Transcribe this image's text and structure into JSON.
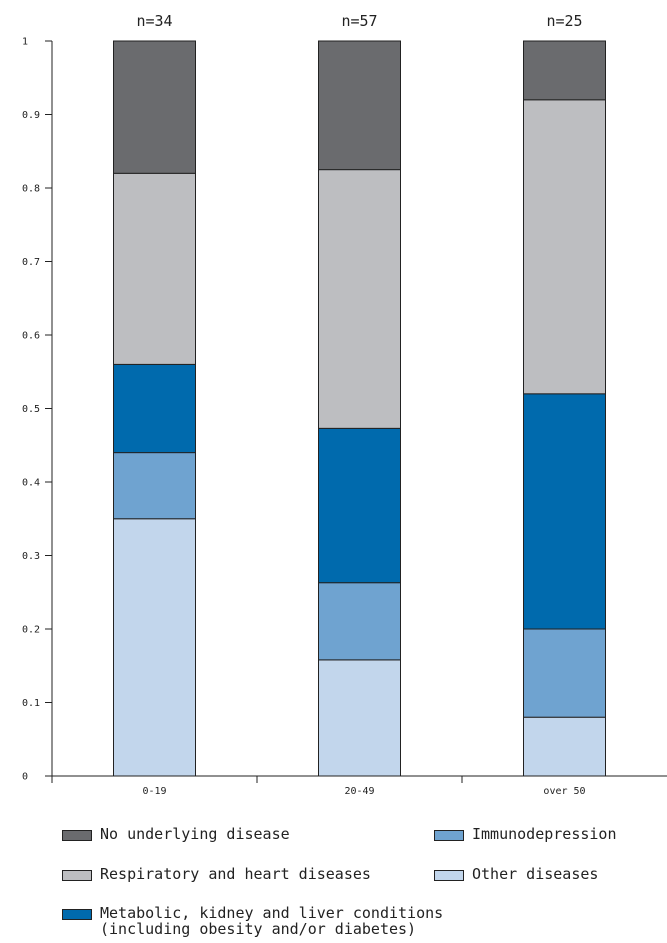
{
  "chart_data": {
    "type": "bar",
    "stacked": true,
    "categories": [
      "0-19",
      "20-49",
      "over 50"
    ],
    "top_labels": [
      "n=34",
      "n=57",
      "n=25"
    ],
    "ylim": [
      0,
      1
    ],
    "yticks": [
      "0",
      "0.1",
      "0.2",
      "0.3",
      "0.4",
      "0.5",
      "0.6",
      "0.7",
      "0.8",
      "0.9",
      "1"
    ],
    "series": [
      {
        "name": "Other diseases",
        "color": "#c2d6ec",
        "values": [
          0.35,
          0.158,
          0.08
        ]
      },
      {
        "name": "Immunodepression",
        "color": "#6fa3d0",
        "values": [
          0.09,
          0.105,
          0.12
        ]
      },
      {
        "name": "Metabolic, kidney and liver conditions\n(including obesity and/or diabetes)",
        "color": "#006aad",
        "values": [
          0.12,
          0.21,
          0.32
        ]
      },
      {
        "name": "Respiratory and heart diseases",
        "color": "#bdbec1",
        "values": [
          0.26,
          0.352,
          0.4
        ]
      },
      {
        "name": "No underlying disease",
        "color": "#6a6b6e",
        "values": [
          0.18,
          0.175,
          0.08
        ]
      }
    ],
    "legend_placement": "bottom"
  }
}
